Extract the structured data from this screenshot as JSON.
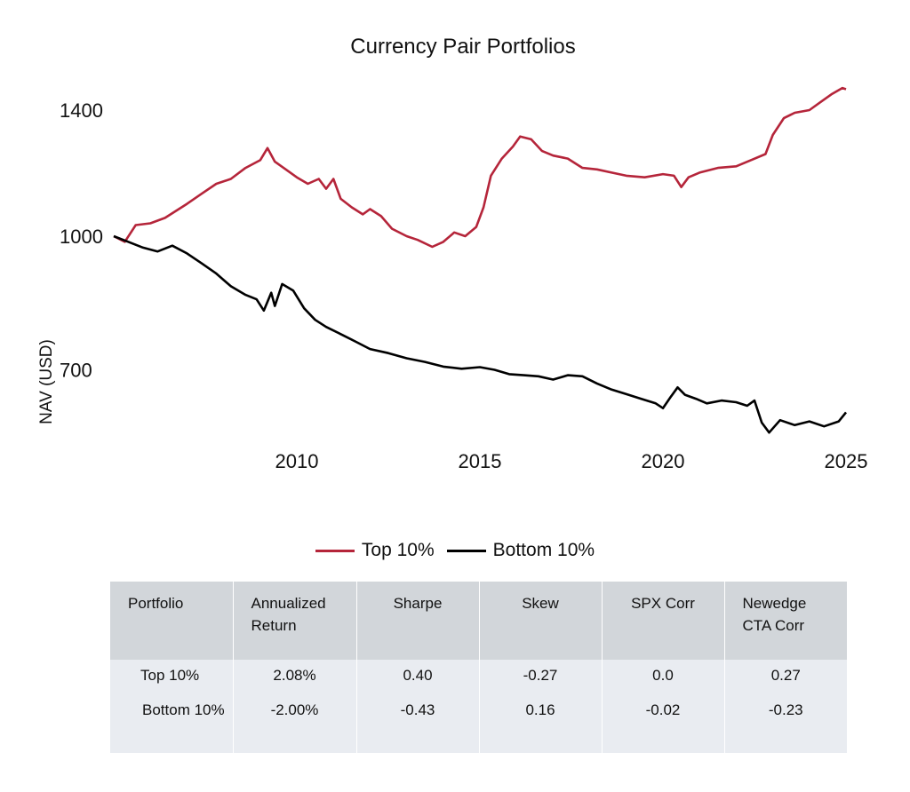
{
  "chart_data": {
    "type": "line",
    "title": "Currency Pair Portfolios",
    "ylabel": "NAV (USD)",
    "xlabel": "",
    "yticks": [
      700,
      1000,
      1400
    ],
    "xticks": [
      "2010",
      "2015",
      "2020",
      "2025"
    ],
    "xlim": [
      2005.0,
      2025.0
    ],
    "ylim": [
      520,
      1600
    ],
    "grid": false,
    "legend_position": "bottom-center",
    "series": [
      {
        "name": "Top 10%",
        "color": "#b5253a",
        "points": [
          [
            2005.0,
            1000
          ],
          [
            2005.3,
            985
          ],
          [
            2005.6,
            1030
          ],
          [
            2006.0,
            1035
          ],
          [
            2006.4,
            1050
          ],
          [
            2007.0,
            1090
          ],
          [
            2007.4,
            1120
          ],
          [
            2007.8,
            1150
          ],
          [
            2008.2,
            1165
          ],
          [
            2008.6,
            1200
          ],
          [
            2009.0,
            1225
          ],
          [
            2009.2,
            1265
          ],
          [
            2009.4,
            1220
          ],
          [
            2009.7,
            1195
          ],
          [
            2010.0,
            1170
          ],
          [
            2010.3,
            1150
          ],
          [
            2010.6,
            1165
          ],
          [
            2010.8,
            1135
          ],
          [
            2011.0,
            1165
          ],
          [
            2011.2,
            1105
          ],
          [
            2011.5,
            1080
          ],
          [
            2011.8,
            1060
          ],
          [
            2012.0,
            1075
          ],
          [
            2012.3,
            1055
          ],
          [
            2012.6,
            1020
          ],
          [
            2013.0,
            1000
          ],
          [
            2013.3,
            990
          ],
          [
            2013.7,
            972
          ],
          [
            2014.0,
            985
          ],
          [
            2014.3,
            1010
          ],
          [
            2014.6,
            1000
          ],
          [
            2014.9,
            1025
          ],
          [
            2015.1,
            1080
          ],
          [
            2015.3,
            1175
          ],
          [
            2015.6,
            1230
          ],
          [
            2015.9,
            1270
          ],
          [
            2016.1,
            1305
          ],
          [
            2016.4,
            1295
          ],
          [
            2016.7,
            1255
          ],
          [
            2017.0,
            1240
          ],
          [
            2017.4,
            1230
          ],
          [
            2017.8,
            1200
          ],
          [
            2018.2,
            1195
          ],
          [
            2018.6,
            1185
          ],
          [
            2019.0,
            1175
          ],
          [
            2019.5,
            1170
          ],
          [
            2020.0,
            1180
          ],
          [
            2020.3,
            1175
          ],
          [
            2020.5,
            1140
          ],
          [
            2020.7,
            1170
          ],
          [
            2021.0,
            1185
          ],
          [
            2021.5,
            1200
          ],
          [
            2022.0,
            1205
          ],
          [
            2022.4,
            1225
          ],
          [
            2022.8,
            1245
          ],
          [
            2023.0,
            1310
          ],
          [
            2023.3,
            1370
          ],
          [
            2023.6,
            1390
          ],
          [
            2024.0,
            1400
          ],
          [
            2024.3,
            1430
          ],
          [
            2024.6,
            1460
          ],
          [
            2024.9,
            1485
          ],
          [
            2025.0,
            1480
          ]
        ]
      },
      {
        "name": "Bottom 10%",
        "color": "#000000",
        "points": [
          [
            2005.0,
            1000
          ],
          [
            2005.4,
            985
          ],
          [
            2005.8,
            970
          ],
          [
            2006.2,
            960
          ],
          [
            2006.6,
            975
          ],
          [
            2007.0,
            955
          ],
          [
            2007.4,
            930
          ],
          [
            2007.8,
            905
          ],
          [
            2008.2,
            875
          ],
          [
            2008.6,
            855
          ],
          [
            2008.9,
            845
          ],
          [
            2009.1,
            820
          ],
          [
            2009.3,
            860
          ],
          [
            2009.4,
            830
          ],
          [
            2009.6,
            880
          ],
          [
            2009.9,
            865
          ],
          [
            2010.2,
            825
          ],
          [
            2010.5,
            800
          ],
          [
            2010.8,
            785
          ],
          [
            2011.2,
            770
          ],
          [
            2011.6,
            755
          ],
          [
            2012.0,
            740
          ],
          [
            2012.5,
            732
          ],
          [
            2013.0,
            722
          ],
          [
            2013.5,
            715
          ],
          [
            2014.0,
            706
          ],
          [
            2014.5,
            702
          ],
          [
            2015.0,
            705
          ],
          [
            2015.4,
            700
          ],
          [
            2015.8,
            692
          ],
          [
            2016.2,
            690
          ],
          [
            2016.6,
            688
          ],
          [
            2017.0,
            682
          ],
          [
            2017.4,
            690
          ],
          [
            2017.8,
            688
          ],
          [
            2018.2,
            675
          ],
          [
            2018.6,
            664
          ],
          [
            2019.0,
            656
          ],
          [
            2019.4,
            648
          ],
          [
            2019.8,
            640
          ],
          [
            2020.0,
            632
          ],
          [
            2020.2,
            650
          ],
          [
            2020.4,
            668
          ],
          [
            2020.6,
            655
          ],
          [
            2020.9,
            648
          ],
          [
            2021.2,
            640
          ],
          [
            2021.6,
            645
          ],
          [
            2022.0,
            642
          ],
          [
            2022.3,
            636
          ],
          [
            2022.5,
            645
          ],
          [
            2022.7,
            608
          ],
          [
            2022.9,
            592
          ],
          [
            2023.2,
            612
          ],
          [
            2023.6,
            604
          ],
          [
            2024.0,
            610
          ],
          [
            2024.4,
            602
          ],
          [
            2024.8,
            610
          ],
          [
            2025.0,
            625
          ]
        ]
      }
    ]
  },
  "legend": {
    "items": [
      {
        "label": "Top 10%",
        "color": "#b5253a"
      },
      {
        "label": "Bottom 10%",
        "color": "#000000"
      }
    ]
  },
  "table": {
    "headers": [
      "Portfolio",
      "Annualized Return",
      "Sharpe",
      "Skew",
      "SPX Corr",
      "Newedge CTA Corr"
    ],
    "rows": [
      [
        "Top 10%",
        "2.08%",
        "0.40",
        "-0.27",
        "0.0",
        "0.27"
      ],
      [
        "Bottom 10%",
        "-2.00%",
        "-0.43",
        "0.16",
        "-0.02",
        "-0.23"
      ]
    ]
  }
}
